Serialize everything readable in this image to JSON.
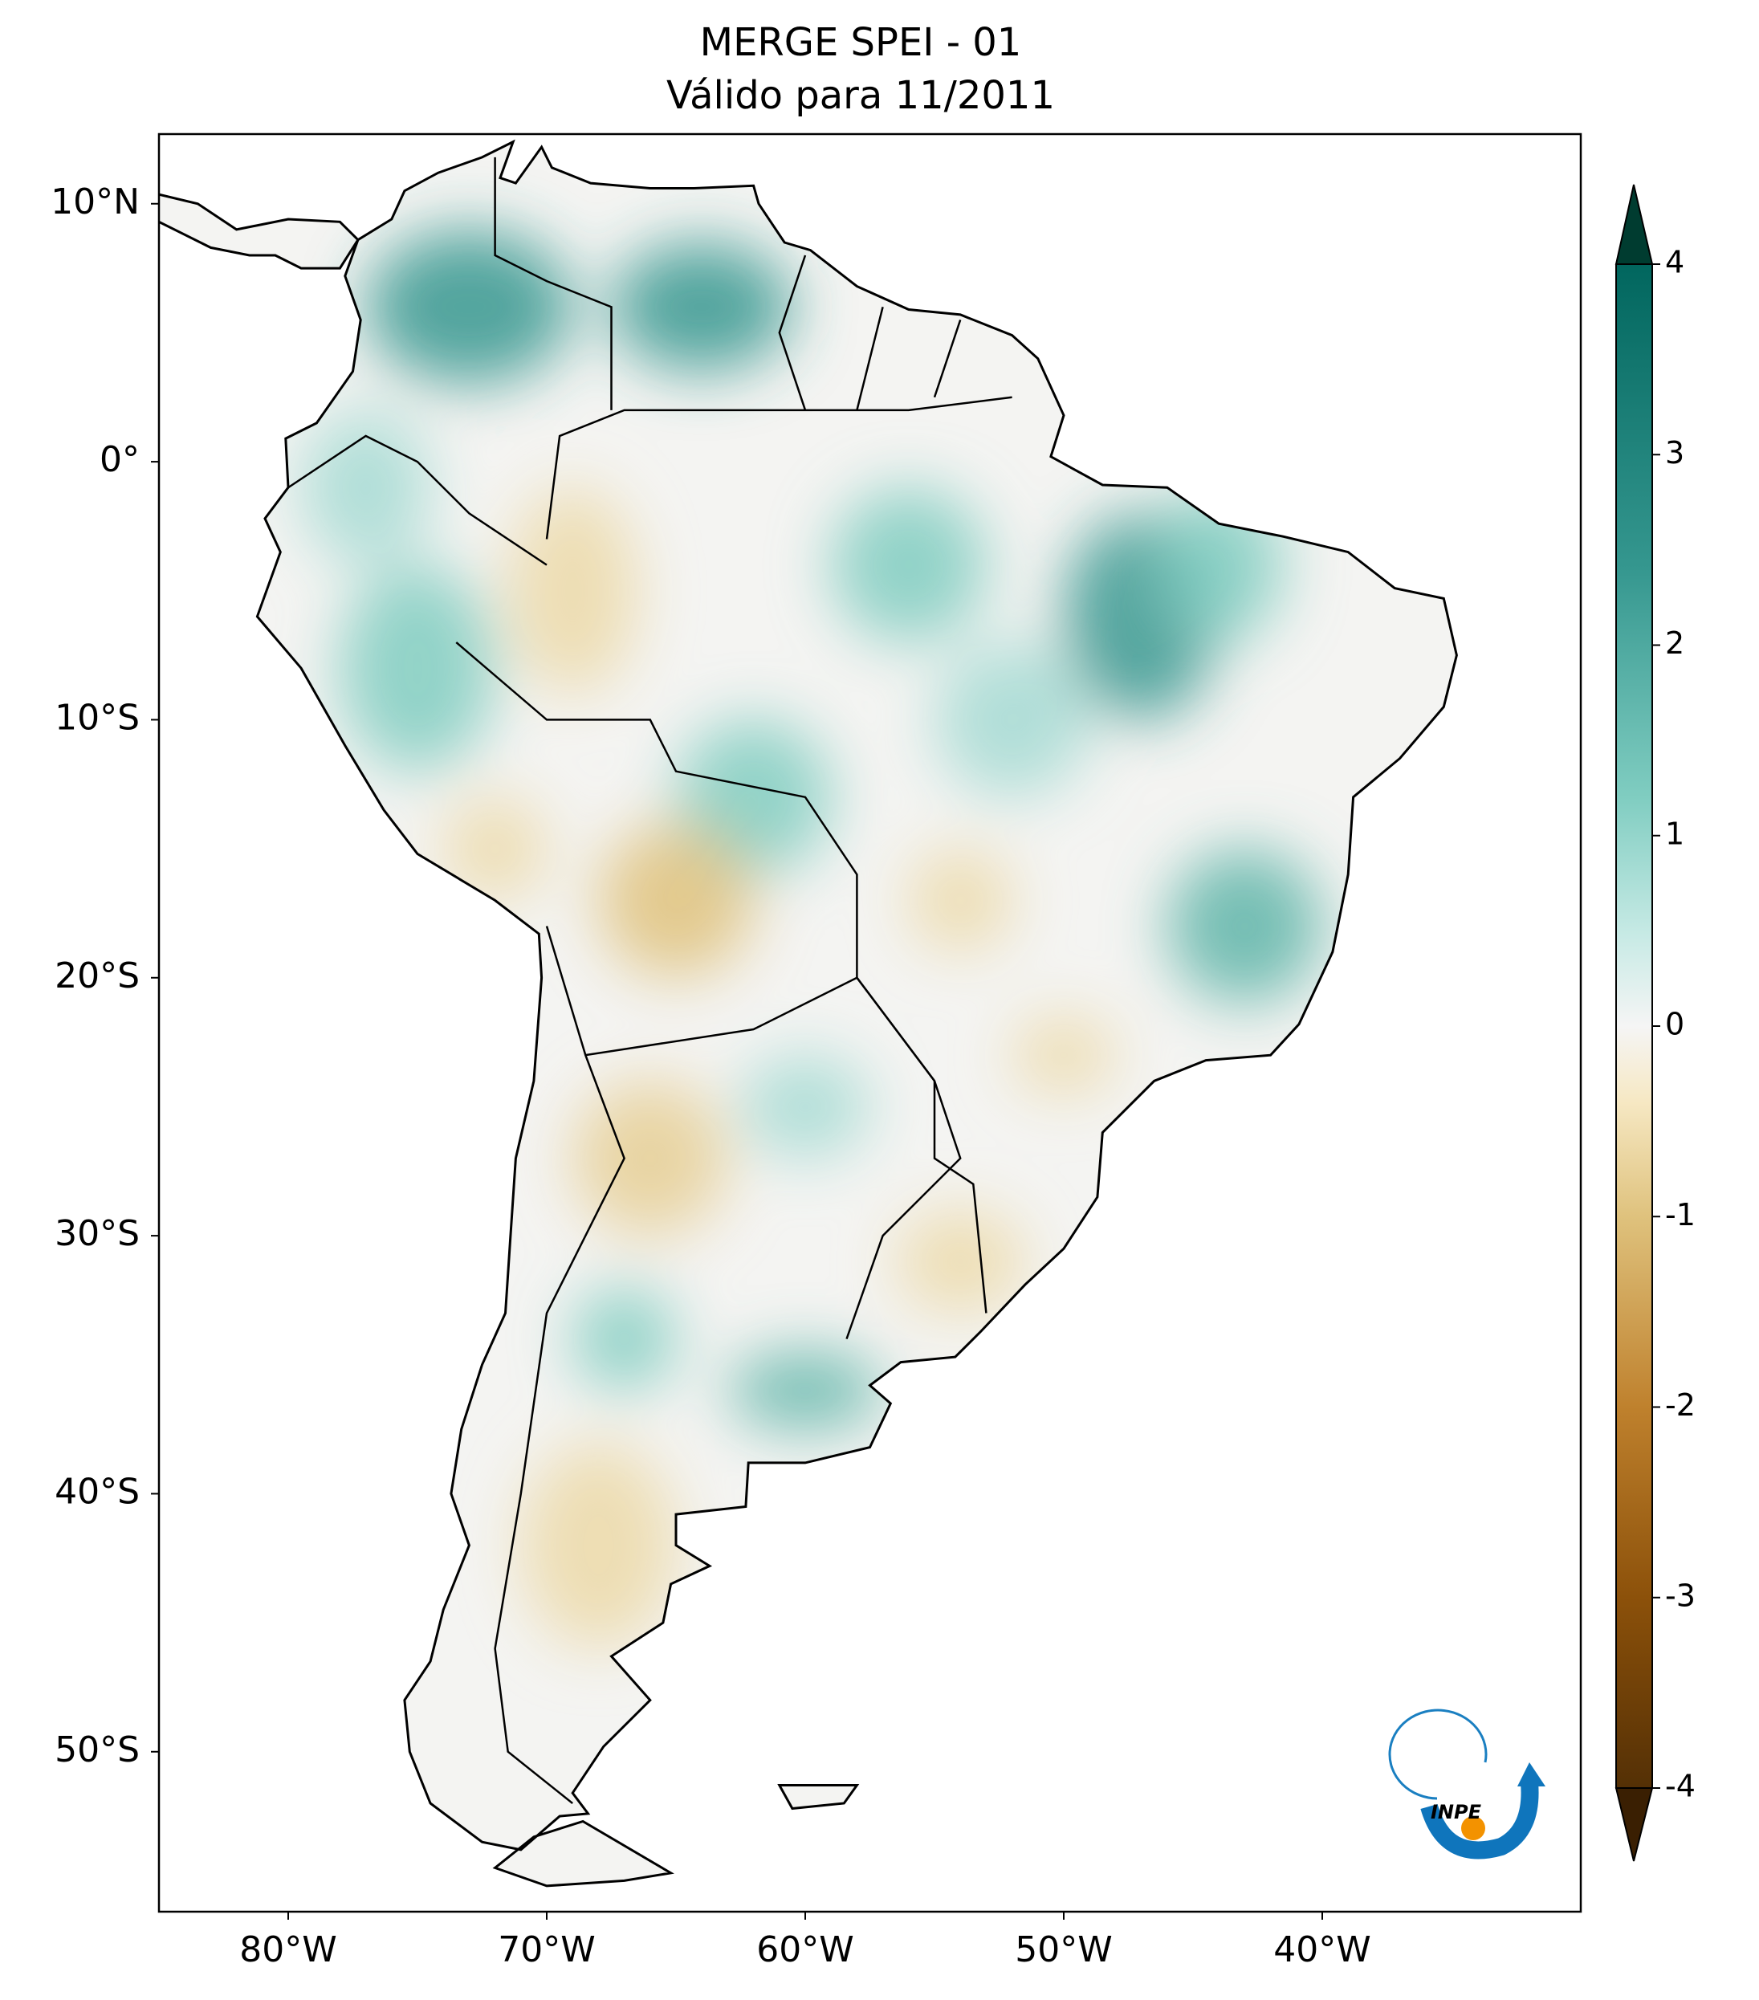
{
  "chart_data": {
    "type": "map",
    "title": "MERGE   SPEI - 01",
    "subtitle": "Válido para 11/2011",
    "xlim": [
      -85,
      -30
    ],
    "ylim": [
      -56.2,
      12.7
    ],
    "xticks": [
      {
        "value": -80,
        "label": "80°W"
      },
      {
        "value": -70,
        "label": "70°W"
      },
      {
        "value": -60,
        "label": "60°W"
      },
      {
        "value": -50,
        "label": "50°W"
      },
      {
        "value": -40,
        "label": "40°W"
      }
    ],
    "yticks": [
      {
        "value": 10,
        "label": "10°N"
      },
      {
        "value": 0,
        "label": "0°"
      },
      {
        "value": -10,
        "label": "10°S"
      },
      {
        "value": -20,
        "label": "20°S"
      },
      {
        "value": -30,
        "label": "30°S"
      },
      {
        "value": -40,
        "label": "40°S"
      },
      {
        "value": -50,
        "label": "50°S"
      }
    ],
    "colorbar": {
      "lim": [
        -4,
        4
      ],
      "ticks": [
        4,
        3,
        2,
        1,
        0,
        -1,
        -2,
        -3,
        -4
      ]
    },
    "logo_text": "INPE"
  }
}
